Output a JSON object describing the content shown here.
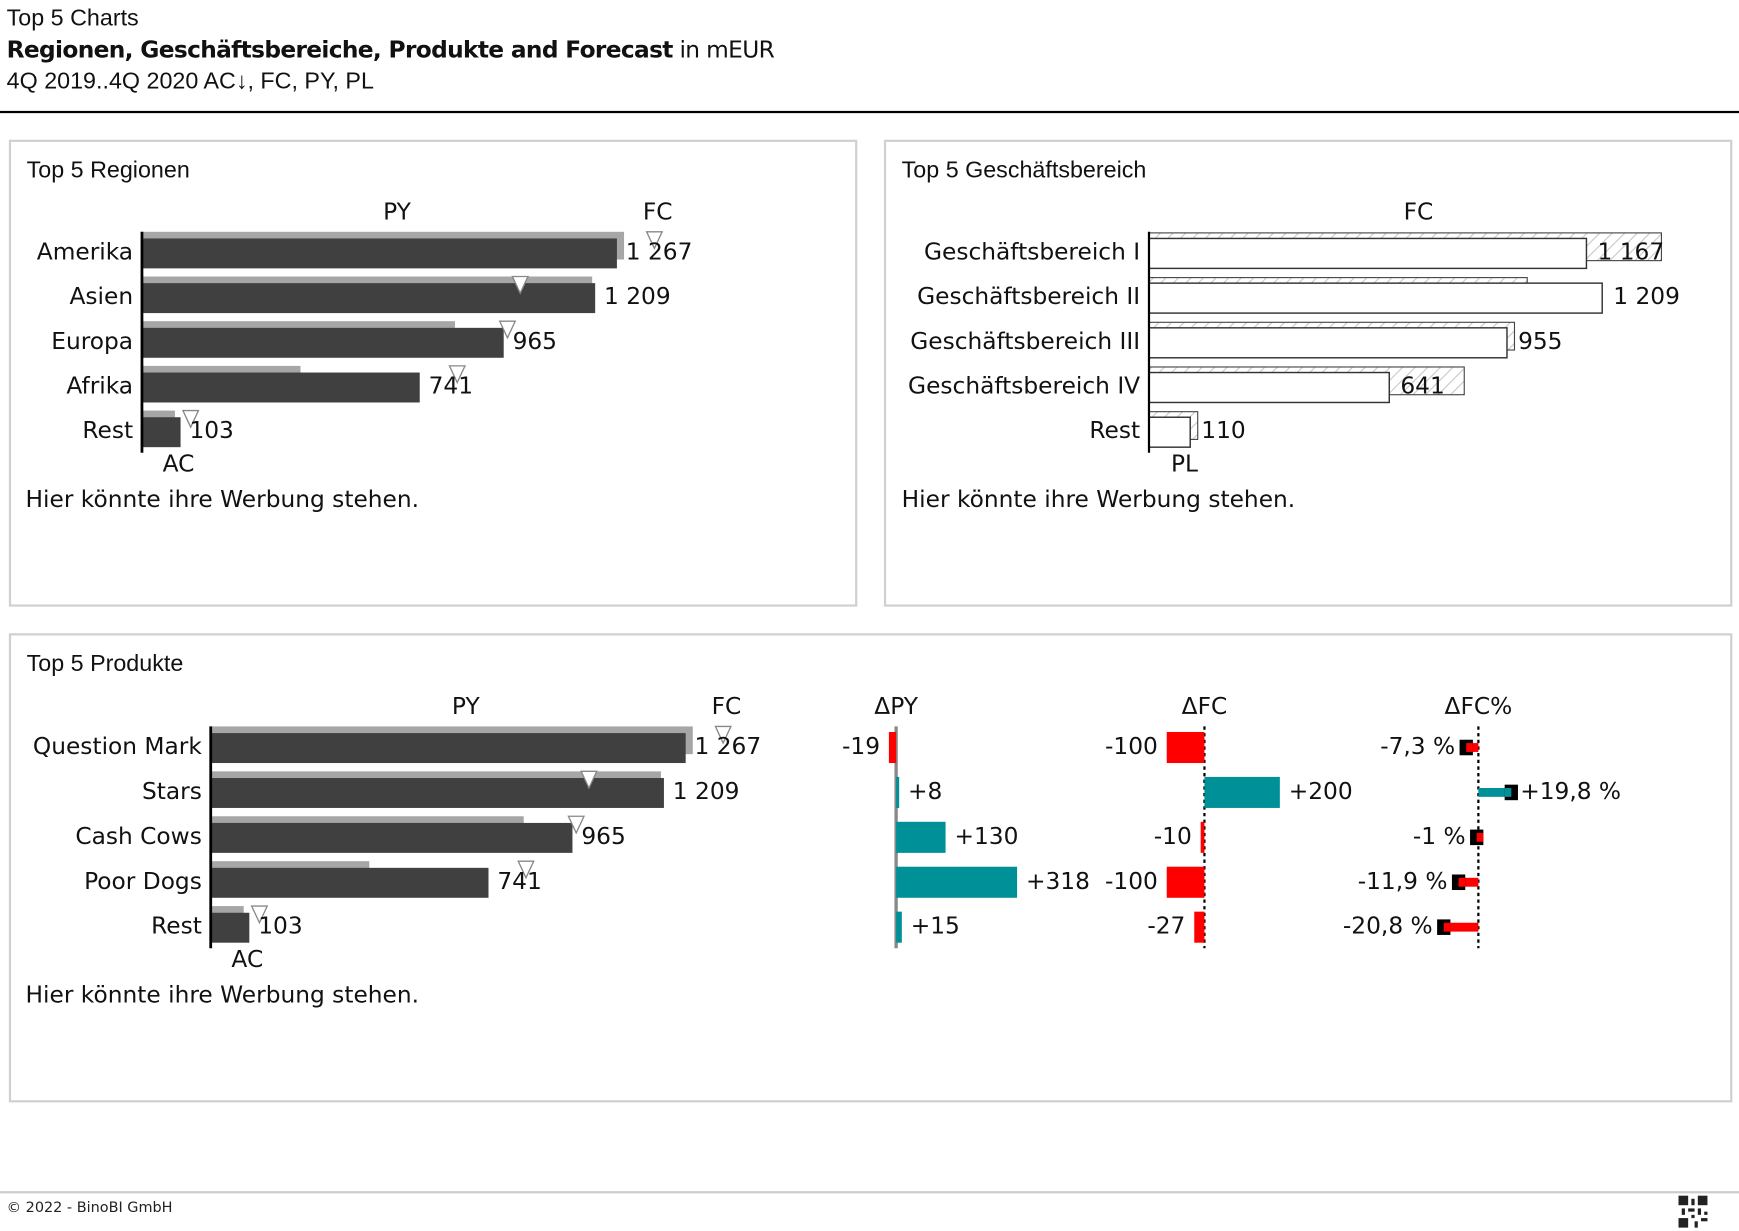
{
  "header": {
    "title": "Top 5 Charts",
    "subtitle_bold": "Regionen, Geschäftsbereiche, Produkte and Forecast",
    "subtitle_unit": " in mEUR",
    "period": "4Q 2019..4Q 2020 AC↓, FC, PY, PL"
  },
  "panels": {
    "regionen": {
      "title": "Top 5 Regionen",
      "note": "Hier könnte ihre Werbung stehen."
    },
    "geschaeftsbereich": {
      "title": "Top 5 Geschäftsbereich",
      "note": "Hier könnte ihre Werbung stehen."
    },
    "produkte": {
      "title": "Top 5 Produkte",
      "note": "Hier könnte ihre Werbung stehen."
    }
  },
  "footer": {
    "copyright": "© 2022 - BinoBI GmbH",
    "qr_icon": "qr-code-icon"
  },
  "colors": {
    "ac": "#404040",
    "py": "#a6a6a6",
    "positive": "#009097",
    "negative": "#ff0000",
    "fc_marker": "#ffffff"
  },
  "chart_data": [
    {
      "type": "bar",
      "title": "Top 5 Regionen",
      "categories": [
        "Amerika",
        "Asien",
        "Europa",
        "Afrika",
        "Rest"
      ],
      "series_labels": {
        "ac": "AC",
        "py": "PY",
        "fc": "FC"
      },
      "ac": [
        1267,
        1209,
        965,
        741,
        103
      ],
      "py": [
        1286,
        1201,
        835,
        423,
        88
      ],
      "fc": [
        1367,
        1009,
        975,
        841,
        130
      ],
      "value_labels": [
        "1 267",
        "1 209",
        "965",
        "741",
        "103"
      ]
    },
    {
      "type": "bar",
      "title": "Top 5 Geschäftsbereich",
      "categories": [
        "Geschäftsbereich I",
        "Geschäftsbereich II",
        "Geschäftsbereich III",
        "Geschäftsbereich IV",
        "Rest"
      ],
      "series_labels": {
        "pl": "PL",
        "fc": "FC"
      },
      "pl": [
        1167,
        1209,
        955,
        641,
        110
      ],
      "fc": [
        1367,
        1009,
        975,
        841,
        130
      ],
      "value_labels": [
        "1 167",
        "1 209",
        "955",
        "641",
        "110"
      ]
    },
    {
      "type": "bar",
      "title": "Top 5 Produkte",
      "categories": [
        "Question Mark",
        "Stars",
        "Cash Cows",
        "Poor Dogs",
        "Rest"
      ],
      "series_labels": {
        "ac": "AC",
        "py": "PY",
        "fc": "FC",
        "dpy": "ΔPY",
        "dfc": "ΔFC",
        "dfcp": "ΔFC%"
      },
      "ac": [
        1267,
        1209,
        965,
        741,
        103
      ],
      "py": [
        1286,
        1201,
        835,
        423,
        88
      ],
      "fc": [
        1367,
        1009,
        975,
        841,
        130
      ],
      "value_labels": [
        "1 267",
        "1 209",
        "965",
        "741",
        "103"
      ],
      "delta_py": [
        -19,
        8,
        130,
        318,
        15
      ],
      "delta_py_labels": [
        "-19",
        "+8",
        "+130",
        "+318",
        "+15"
      ],
      "delta_fc": [
        -100,
        200,
        -10,
        -100,
        -27
      ],
      "delta_fc_labels": [
        "-100",
        "+200",
        "-10",
        "-100",
        "-27"
      ],
      "delta_fc_pct": [
        -7.3,
        19.8,
        -1,
        -11.9,
        -20.8
      ],
      "delta_fc_pct_labels": [
        "-7,3 %",
        "+19,8 %",
        "-1 %",
        "-11,9 %",
        "-20,8 %"
      ]
    }
  ]
}
